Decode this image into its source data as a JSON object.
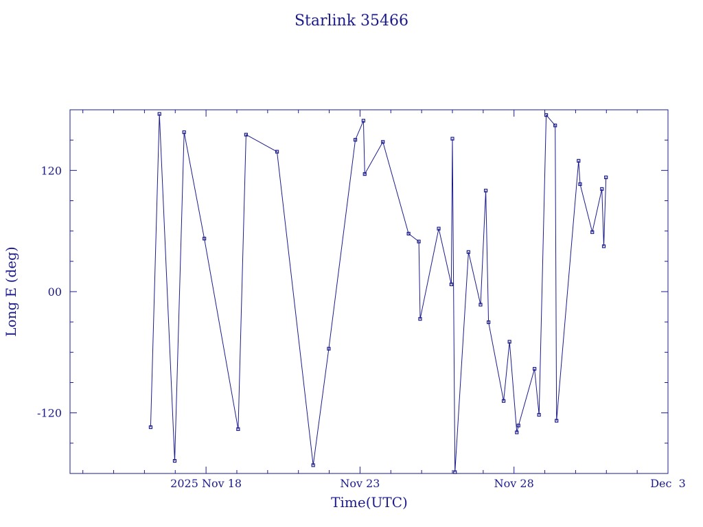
{
  "chart_data": {
    "type": "line",
    "title": "Starlink 35466",
    "xlabel": "Time(UTC)",
    "ylabel": "Long E (deg)",
    "x_unit": "days",
    "xlim": [
      "2025-11-13T14:00",
      "2025-12-03T00:00"
    ],
    "ylim": [
      -180,
      180
    ],
    "x_tick_labels": [
      {
        "x": "2025-11-18T00:00",
        "label": "2025 Nov 18"
      },
      {
        "x": "2025-11-23T00:00",
        "label": "Nov 23"
      },
      {
        "x": "2025-11-28T00:00",
        "label": "Nov 28"
      },
      {
        "x": "2025-12-03T00:00",
        "label": "Dec  3"
      }
    ],
    "y_tick_labels": [
      {
        "y": 120,
        "label": "120"
      },
      {
        "y": 0,
        "label": "00"
      },
      {
        "y": -120,
        "label": "-120"
      }
    ],
    "line_color": "#1a1a8c",
    "grid": false,
    "points": [
      [
        "2025-11-16T04:50",
        -134.2
      ],
      [
        "2025-11-16T11:40",
        175.9
      ],
      [
        "2025-11-16T23:35",
        -167.5
      ],
      [
        "2025-11-17T06:55",
        157.8
      ],
      [
        "2025-11-17T22:40",
        52.5
      ],
      [
        "2025-11-19T01:00",
        -136.1
      ],
      [
        "2025-11-19T07:10",
        155.4
      ],
      [
        "2025-11-20T07:20",
        138.5
      ],
      [
        "2025-11-21T11:30",
        -171.8
      ],
      [
        "2025-11-21T23:40",
        -56.5
      ],
      [
        "2025-11-22T20:20",
        150.3
      ],
      [
        "2025-11-23T02:40",
        169.2
      ],
      [
        "2025-11-23T03:40",
        116.4
      ],
      [
        "2025-11-23T17:50",
        148.2
      ],
      [
        "2025-11-24T13:50",
        57.4
      ],
      [
        "2025-11-24T21:50",
        49.6
      ],
      [
        "2025-11-24T22:50",
        -27.0
      ],
      [
        "2025-11-25T13:20",
        62.4
      ],
      [
        "2025-11-25T23:10",
        7.2
      ],
      [
        "2025-11-26T00:00",
        151.4
      ],
      [
        "2025-11-26T02:00",
        -178.7
      ],
      [
        "2025-11-26T12:30",
        39.2
      ],
      [
        "2025-11-26T21:55",
        -12.9
      ],
      [
        "2025-11-27T02:00",
        100.0
      ],
      [
        "2025-11-27T04:10",
        -30.3
      ],
      [
        "2025-11-27T15:55",
        -108.2
      ],
      [
        "2025-11-27T20:30",
        -49.6
      ],
      [
        "2025-11-28T02:10",
        -139.3
      ],
      [
        "2025-11-28T03:30",
        -132.5
      ],
      [
        "2025-11-28T16:00",
        -76.4
      ],
      [
        "2025-11-28T19:30",
        -121.9
      ],
      [
        "2025-11-29T01:05",
        174.8
      ],
      [
        "2025-11-29T08:05",
        164.5
      ],
      [
        "2025-11-29T09:10",
        -127.8
      ],
      [
        "2025-11-30T02:20",
        129.5
      ],
      [
        "2025-11-30T03:30",
        106.4
      ],
      [
        "2025-11-30T13:00",
        58.9
      ],
      [
        "2025-11-30T20:30",
        101.6
      ],
      [
        "2025-11-30T22:00",
        44.9
      ],
      [
        "2025-11-30T23:40",
        113.1
      ]
    ]
  }
}
